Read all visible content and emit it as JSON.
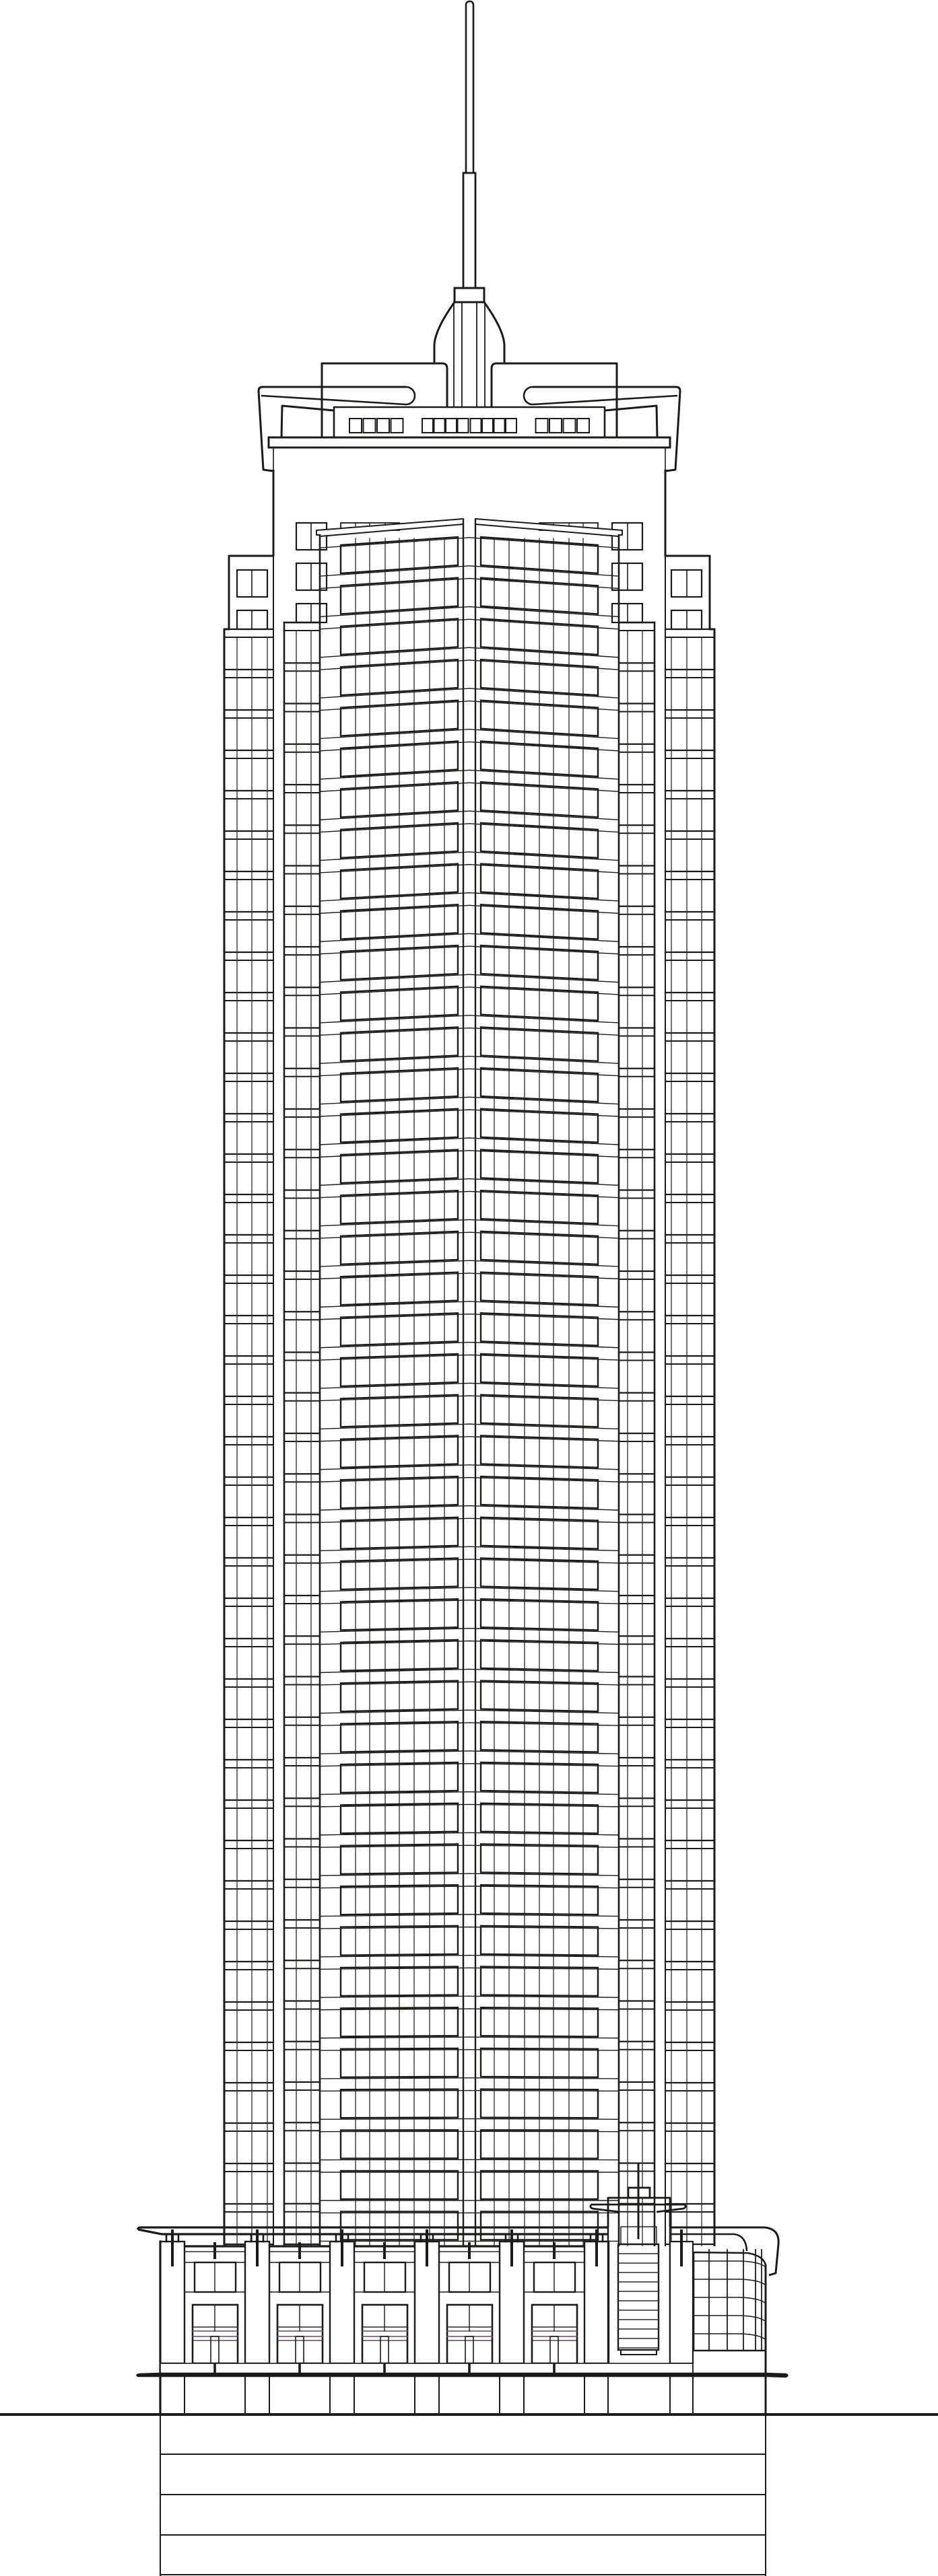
{
  "drawing": {
    "kind": "building-elevation",
    "colors": {
      "line": "#1b1b18",
      "thin_line": "#2a2a27",
      "accent": "#7b3f6e",
      "background": "#ffffff"
    }
  }
}
